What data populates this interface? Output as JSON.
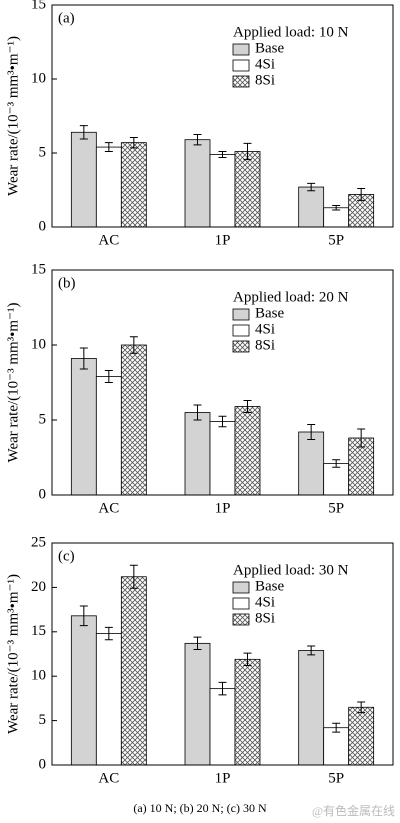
{
  "chart_data": [
    {
      "type": "bar",
      "panel_label": "(a)",
      "legend_title": "Applied load: 10 N",
      "ylabel": "Wear rate/(10⁻³ mm³•m⁻¹)",
      "categories": [
        "AC",
        "1P",
        "5P"
      ],
      "series": [
        {
          "name": "Base",
          "color": "#d3d3d3",
          "values": [
            6.4,
            5.9,
            2.7
          ],
          "errors": [
            0.45,
            0.35,
            0.25
          ]
        },
        {
          "name": "4Si",
          "color": "#ffffff",
          "values": [
            5.4,
            4.9,
            1.3
          ],
          "errors": [
            0.3,
            0.2,
            0.15
          ]
        },
        {
          "name": "8Si",
          "color": "#ffffff",
          "hatch": "cross",
          "values": [
            5.7,
            5.1,
            2.2
          ],
          "errors": [
            0.35,
            0.55,
            0.4
          ]
        }
      ],
      "ylim": [
        0,
        15
      ],
      "yticks": [
        0,
        5,
        10,
        15
      ],
      "legend": "upper right"
    },
    {
      "type": "bar",
      "panel_label": "(b)",
      "legend_title": "Applied load: 20 N",
      "ylabel": "Wear rate/(10⁻³ mm³•m⁻¹)",
      "categories": [
        "AC",
        "1P",
        "5P"
      ],
      "series": [
        {
          "name": "Base",
          "color": "#d3d3d3",
          "values": [
            9.1,
            5.5,
            4.2
          ],
          "errors": [
            0.7,
            0.5,
            0.5
          ]
        },
        {
          "name": "4Si",
          "color": "#ffffff",
          "values": [
            7.9,
            4.9,
            2.1
          ],
          "errors": [
            0.4,
            0.35,
            0.25
          ]
        },
        {
          "name": "8Si",
          "color": "#ffffff",
          "hatch": "cross",
          "values": [
            10.0,
            5.9,
            3.8
          ],
          "errors": [
            0.55,
            0.4,
            0.6
          ]
        }
      ],
      "ylim": [
        0,
        15
      ],
      "yticks": [
        0,
        5,
        10,
        15
      ],
      "legend": "upper right"
    },
    {
      "type": "bar",
      "panel_label": "(c)",
      "legend_title": "Applied load: 30 N",
      "ylabel": "Wear rate/(10⁻³ mm³•m⁻¹)",
      "categories": [
        "AC",
        "1P",
        "5P"
      ],
      "series": [
        {
          "name": "Base",
          "color": "#d3d3d3",
          "values": [
            16.8,
            13.7,
            12.9
          ],
          "errors": [
            1.1,
            0.7,
            0.5
          ]
        },
        {
          "name": "4Si",
          "color": "#ffffff",
          "values": [
            14.8,
            8.6,
            4.2
          ],
          "errors": [
            0.7,
            0.7,
            0.5
          ]
        },
        {
          "name": "8Si",
          "color": "#ffffff",
          "hatch": "cross",
          "values": [
            21.2,
            11.9,
            6.5
          ],
          "errors": [
            1.3,
            0.7,
            0.6
          ]
        }
      ],
      "ylim": [
        0,
        25
      ],
      "yticks": [
        0,
        5,
        10,
        15,
        20,
        25
      ],
      "legend": "upper right"
    }
  ],
  "caption": "(a) 10 N; (b) 20 N; (c) 30 N",
  "watermark": "@有色金属在线"
}
